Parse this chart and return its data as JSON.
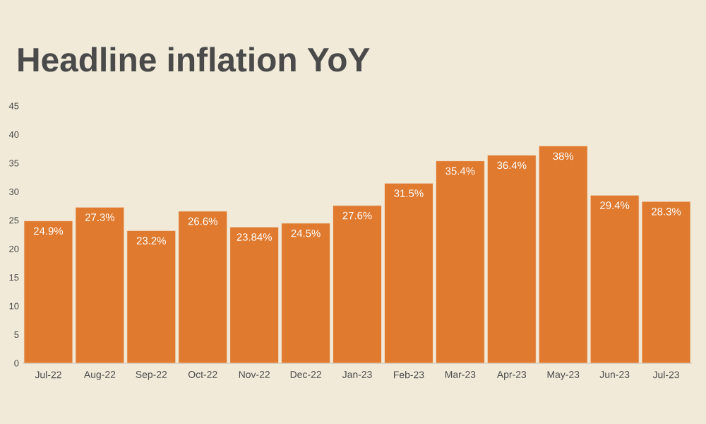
{
  "chart_data": {
    "type": "bar",
    "title": "Headline inflation YoY",
    "categories": [
      "Jul-22",
      "Aug-22",
      "Sep-22",
      "Oct-22",
      "Nov-22",
      "Dec-22",
      "Jan-23",
      "Feb-23",
      "Mar-23",
      "Apr-23",
      "May-23",
      "Jun-23",
      "Jul-23"
    ],
    "values": [
      24.9,
      27.3,
      23.2,
      26.6,
      23.84,
      24.5,
      27.6,
      31.5,
      35.4,
      36.4,
      38,
      29.4,
      28.3
    ],
    "value_labels": [
      "24.9%",
      "27.3%",
      "23.2%",
      "26.6%",
      "23.84%",
      "24.5%",
      "27.6%",
      "31.5%",
      "35.4%",
      "36.4%",
      "38%",
      "29.4%",
      "28.3%"
    ],
    "color": "#e07a2f",
    "ylim": [
      0,
      45
    ],
    "yticks": [
      0,
      5,
      10,
      15,
      20,
      25,
      30,
      35,
      40,
      45
    ],
    "grid": false
  }
}
